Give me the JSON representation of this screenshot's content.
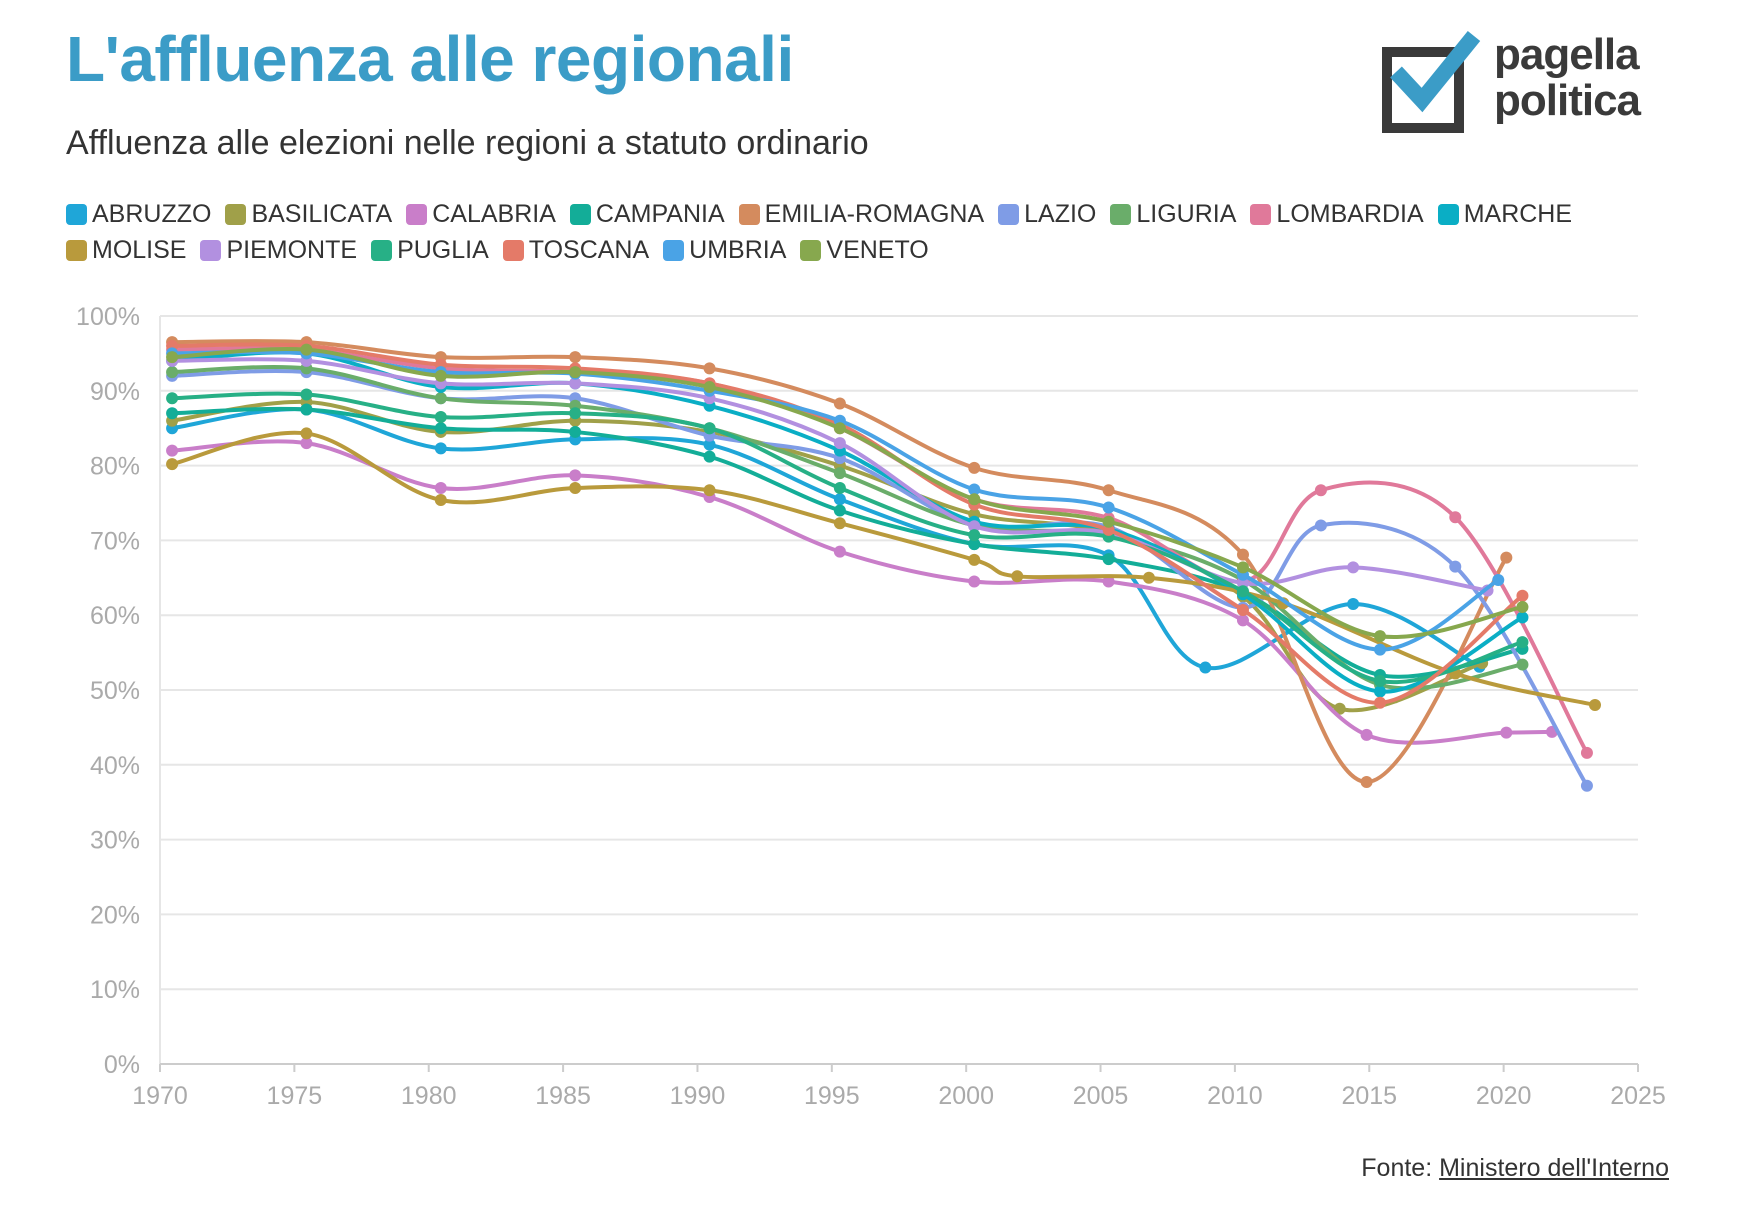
{
  "header": {
    "title": "L'affluenza alle regionali",
    "subtitle": "Affluenza alle elezioni nelle regioni a statuto ordinario"
  },
  "logo": {
    "line1": "pagella",
    "line2": "politica",
    "accent_color": "#3b9cc7",
    "dark_color": "#3a3a3a"
  },
  "source": {
    "prefix": "Fonte: ",
    "link_text": "Ministero dell'Interno"
  },
  "chart_data": {
    "type": "line",
    "title": "L'affluenza alle regionali",
    "subtitle": "Affluenza alle elezioni nelle regioni a statuto ordinario",
    "xlabel": "",
    "ylabel": "",
    "xlim": [
      1970,
      2025
    ],
    "ylim": [
      0,
      100
    ],
    "x_ticks": [
      "1970",
      "1975",
      "1980",
      "1985",
      "1990",
      "1995",
      "2000",
      "2005",
      "2010",
      "2015",
      "2020",
      "2025"
    ],
    "y_ticks": [
      "0%",
      "10%",
      "20%",
      "30%",
      "40%",
      "50%",
      "60%",
      "70%",
      "80%",
      "90%",
      "100%"
    ],
    "grid": "horizontal",
    "legend_position": "top",
    "series": [
      {
        "name": "ABRUZZO",
        "color": "#1fa6d8",
        "x": [
          1970.45,
          1975.45,
          1980.45,
          1985.45,
          1990.45,
          1995.3,
          2000.3,
          2005.3,
          2008.9,
          2014.4,
          2019.1
        ],
        "y": [
          85,
          87.5,
          82.3,
          83.5,
          82.8,
          75.5,
          69.5,
          68,
          53,
          61.5,
          53.1
        ]
      },
      {
        "name": "BASILICATA",
        "color": "#a0a049",
        "x": [
          1970.45,
          1975.45,
          1980.45,
          1985.45,
          1990.45,
          1995.3,
          2000.3,
          2005.3,
          2010.3,
          2013.9,
          2019.2
        ],
        "y": [
          86,
          88.5,
          84.5,
          86,
          84.5,
          80,
          73.5,
          71,
          62.5,
          47.5,
          53.6
        ]
      },
      {
        "name": "CALABRIA",
        "color": "#c97ec9",
        "x": [
          1970.45,
          1975.45,
          1980.45,
          1985.45,
          1990.45,
          1995.3,
          2000.3,
          2005.3,
          2010.3,
          2014.9,
          2020.1,
          2021.8
        ],
        "y": [
          82,
          83,
          77,
          78.7,
          75.8,
          68.5,
          64.5,
          64.5,
          59.3,
          44,
          44.3,
          44.4
        ]
      },
      {
        "name": "CAMPANIA",
        "color": "#13ad98",
        "x": [
          1970.45,
          1975.45,
          1980.45,
          1985.45,
          1990.45,
          1995.3,
          2000.3,
          2005.3,
          2010.3,
          2015.4,
          2020.7
        ],
        "y": [
          87,
          87.5,
          85,
          84.5,
          81.2,
          74,
          69.5,
          67.5,
          63,
          52,
          55.5
        ]
      },
      {
        "name": "EMILIA-ROMAGNA",
        "color": "#d48b5e",
        "x": [
          1970.45,
          1975.45,
          1980.45,
          1985.45,
          1990.45,
          1995.3,
          2000.3,
          2005.3,
          2010.3,
          2014.9,
          2020.1
        ],
        "y": [
          96.5,
          96.5,
          94.5,
          94.5,
          93,
          88.3,
          79.7,
          76.7,
          68.1,
          37.7,
          67.7
        ]
      },
      {
        "name": "LAZIO",
        "color": "#7f9ce6",
        "x": [
          1970.45,
          1975.45,
          1980.45,
          1985.45,
          1990.45,
          1995.3,
          2000.3,
          2005.3,
          2010.3,
          2013.2,
          2018.2,
          2023.1
        ],
        "y": [
          92,
          92.5,
          89,
          89,
          84,
          81,
          72,
          71.8,
          61,
          72,
          66.5,
          37.2
        ]
      },
      {
        "name": "LIGURIA",
        "color": "#6aad6a",
        "x": [
          1970.45,
          1975.45,
          1980.45,
          1985.45,
          1990.45,
          1995.3,
          2000.3,
          2005.3,
          2010.3,
          2015.4,
          2020.7
        ],
        "y": [
          92.5,
          93,
          89,
          88,
          85,
          79,
          72,
          70.7,
          64.7,
          50.7,
          53.4
        ]
      },
      {
        "name": "LOMBARDIA",
        "color": "#e0799a",
        "x": [
          1970.45,
          1975.45,
          1980.45,
          1985.45,
          1990.45,
          1995.3,
          2000.3,
          2005.3,
          2010.3,
          2013.2,
          2018.2,
          2023.1
        ],
        "y": [
          95.5,
          95.5,
          93,
          92.5,
          91,
          85,
          75.5,
          73,
          64.5,
          76.7,
          73.1,
          41.6
        ]
      },
      {
        "name": "MARCHE",
        "color": "#0aaec5",
        "x": [
          1970.45,
          1975.45,
          1980.45,
          1985.45,
          1990.45,
          1995.3,
          2000.3,
          2005.3,
          2010.3,
          2015.4,
          2020.7
        ],
        "y": [
          94,
          95,
          90.5,
          91,
          88,
          82,
          72.5,
          71.5,
          62.8,
          49.8,
          59.7
        ]
      },
      {
        "name": "MOLISE",
        "color": "#b99a3c",
        "x": [
          1970.45,
          1975.45,
          1980.45,
          1985.45,
          1990.45,
          1995.3,
          2000.3,
          2001.9,
          2006.8,
          2011.8,
          2018.2,
          2023.4
        ],
        "y": [
          80.2,
          84.3,
          75.4,
          77,
          76.7,
          72.3,
          67.4,
          65.2,
          65,
          61.6,
          52.2,
          48
        ]
      },
      {
        "name": "PIEMONTE",
        "color": "#b290e0",
        "x": [
          1970.45,
          1975.45,
          1980.45,
          1985.45,
          1990.45,
          1995.3,
          2000.3,
          2005.3,
          2010.3,
          2014.4,
          2019.4
        ],
        "y": [
          94,
          94,
          91,
          91,
          89,
          83,
          71.9,
          71,
          64.3,
          66.4,
          63.3
        ]
      },
      {
        "name": "PUGLIA",
        "color": "#27b086",
        "x": [
          1970.45,
          1975.45,
          1980.45,
          1985.45,
          1990.45,
          1995.3,
          2000.3,
          2005.3,
          2010.3,
          2015.4,
          2020.7
        ],
        "y": [
          89,
          89.5,
          86.5,
          87,
          85,
          77,
          70.7,
          70.5,
          63.2,
          51.2,
          56.4
        ]
      },
      {
        "name": "TOSCANA",
        "color": "#e47a68",
        "x": [
          1970.45,
          1975.45,
          1980.45,
          1985.45,
          1990.45,
          1995.3,
          2000.3,
          2005.3,
          2010.3,
          2015.4,
          2020.7
        ],
        "y": [
          96,
          96,
          93.5,
          93,
          91,
          85.5,
          74.8,
          71.4,
          60.7,
          48.3,
          62.6
        ]
      },
      {
        "name": "UMBRIA",
        "color": "#4aa3e6",
        "x": [
          1970.45,
          1975.45,
          1980.45,
          1985.45,
          1990.45,
          1995.3,
          2000.3,
          2005.3,
          2010.3,
          2015.4,
          2019.8
        ],
        "y": [
          95,
          95,
          92.5,
          92.3,
          90,
          86,
          76.8,
          74.4,
          65.4,
          55.4,
          64.7
        ]
      },
      {
        "name": "VENETO",
        "color": "#87a84e",
        "x": [
          1970.45,
          1975.45,
          1980.45,
          1985.45,
          1990.45,
          1995.3,
          2000.3,
          2005.3,
          2010.3,
          2015.4,
          2020.7
        ],
        "y": [
          94.5,
          95.5,
          92,
          92.5,
          90.5,
          85,
          75.5,
          72.5,
          66.4,
          57.2,
          61.1
        ]
      }
    ]
  }
}
